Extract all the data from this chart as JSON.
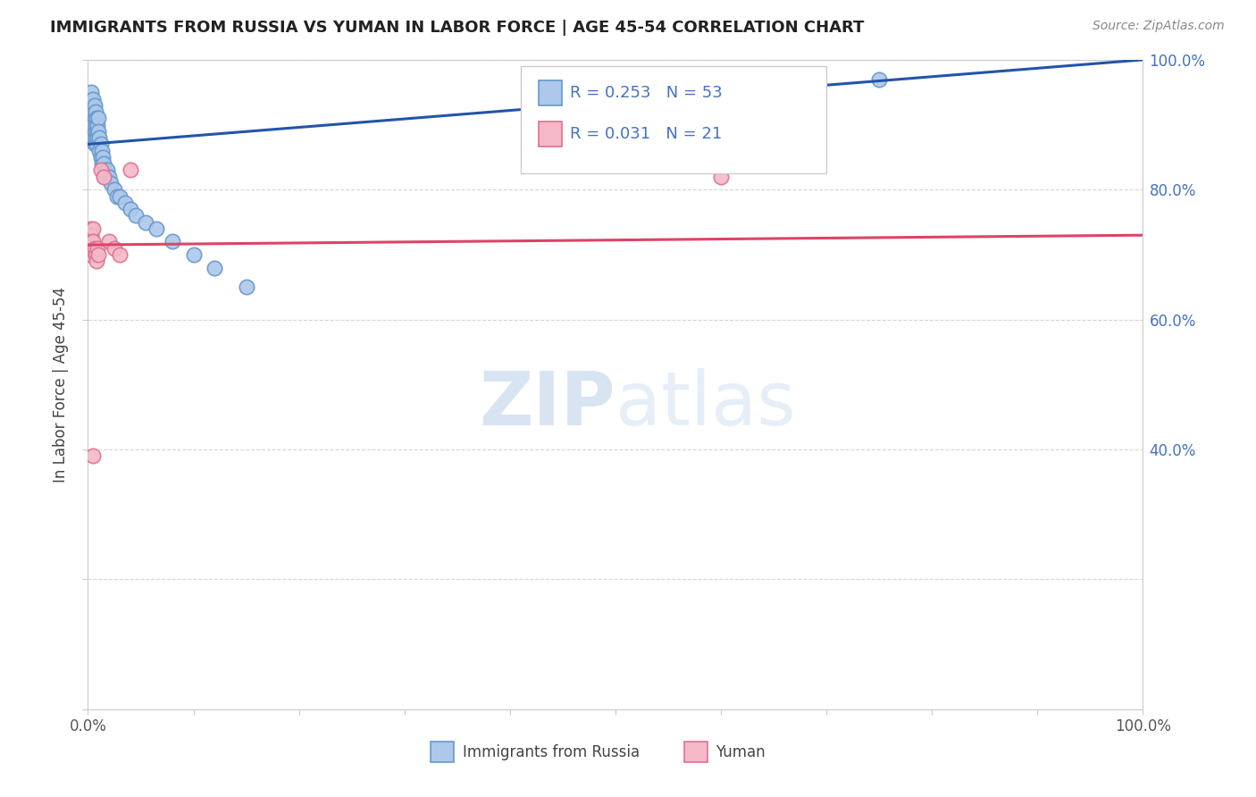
{
  "title": "IMMIGRANTS FROM RUSSIA VS YUMAN IN LABOR FORCE | AGE 45-54 CORRELATION CHART",
  "source": "Source: ZipAtlas.com",
  "ylabel": "In Labor Force | Age 45-54",
  "xlim": [
    0.0,
    1.0
  ],
  "ylim": [
    0.0,
    1.0
  ],
  "russia_R": 0.253,
  "russia_N": 53,
  "yuman_R": 0.031,
  "yuman_N": 21,
  "russia_color": "#adc8ea",
  "russia_edge_color": "#6699cc",
  "yuman_color": "#f5b8c8",
  "yuman_edge_color": "#e07090",
  "trend_russia_color": "#2255aa",
  "trend_yuman_color": "#dd4466",
  "watermark_color": "#c8daf0",
  "background_color": "#ffffff",
  "russia_x": [
    0.001,
    0.002,
    0.002,
    0.003,
    0.003,
    0.003,
    0.004,
    0.004,
    0.004,
    0.005,
    0.005,
    0.005,
    0.005,
    0.006,
    0.006,
    0.006,
    0.006,
    0.007,
    0.007,
    0.007,
    0.008,
    0.008,
    0.008,
    0.009,
    0.009,
    0.01,
    0.01,
    0.011,
    0.011,
    0.012,
    0.012,
    0.013,
    0.013,
    0.014,
    0.015,
    0.016,
    0.017,
    0.018,
    0.02,
    0.022,
    0.025,
    0.028,
    0.03,
    0.035,
    0.04,
    0.045,
    0.055,
    0.065,
    0.08,
    0.1,
    0.12,
    0.15,
    0.75
  ],
  "russia_y": [
    0.93,
    0.94,
    0.91,
    0.95,
    0.92,
    0.9,
    0.93,
    0.91,
    0.89,
    0.94,
    0.92,
    0.9,
    0.88,
    0.93,
    0.91,
    0.89,
    0.87,
    0.92,
    0.9,
    0.88,
    0.91,
    0.89,
    0.87,
    0.9,
    0.88,
    0.91,
    0.89,
    0.88,
    0.86,
    0.87,
    0.85,
    0.86,
    0.84,
    0.85,
    0.84,
    0.83,
    0.82,
    0.83,
    0.82,
    0.81,
    0.8,
    0.79,
    0.79,
    0.78,
    0.77,
    0.76,
    0.75,
    0.74,
    0.72,
    0.7,
    0.68,
    0.65,
    0.97
  ],
  "yuman_x": [
    0.001,
    0.002,
    0.002,
    0.003,
    0.003,
    0.004,
    0.005,
    0.005,
    0.006,
    0.007,
    0.008,
    0.009,
    0.01,
    0.012,
    0.015,
    0.02,
    0.025,
    0.03,
    0.04,
    0.6,
    0.005
  ],
  "yuman_y": [
    0.72,
    0.74,
    0.7,
    0.73,
    0.71,
    0.72,
    0.74,
    0.72,
    0.71,
    0.7,
    0.69,
    0.71,
    0.7,
    0.83,
    0.82,
    0.72,
    0.71,
    0.7,
    0.83,
    0.82,
    0.39
  ]
}
